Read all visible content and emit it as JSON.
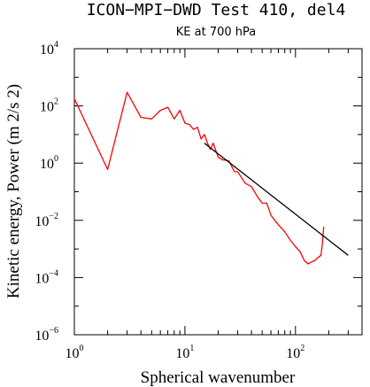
{
  "chart_data": {
    "type": "line",
    "title": "ICON−MPI−DWD Test 410, del4",
    "subtitle": "KE at 700 hPa",
    "xlabel": "Spherical wavenumber",
    "ylabel": "Kinetic energy, Power (m 2/s 2)",
    "x_scale": "log",
    "y_scale": "log",
    "xlim": [
      1,
      400
    ],
    "ylim": [
      1e-06,
      10000.0
    ],
    "x_ticks": [
      {
        "base": "10",
        "exp": "0",
        "value": 1
      },
      {
        "base": "10",
        "exp": "1",
        "value": 10
      },
      {
        "base": "10",
        "exp": "2",
        "value": 100
      }
    ],
    "y_ticks": [
      {
        "base": "10",
        "exp": "4",
        "value": 10000
      },
      {
        "base": "10",
        "exp": "2",
        "value": 100
      },
      {
        "base": "10",
        "exp": "0",
        "value": 1
      },
      {
        "base": "10",
        "exp": "−2",
        "value": 0.01
      },
      {
        "base": "10",
        "exp": "−4",
        "value": 0.0001
      },
      {
        "base": "10",
        "exp": "−6",
        "value": 1e-06
      }
    ],
    "grid": false,
    "legend": "none",
    "series": [
      {
        "color": "#ff0000",
        "x": [
          1,
          2,
          3,
          4,
          5,
          6,
          7,
          8,
          9,
          10,
          11,
          12,
          13,
          14,
          15,
          16,
          17,
          18,
          20,
          22,
          25,
          28,
          30,
          35,
          40,
          45,
          50,
          55,
          60,
          70,
          80,
          90,
          100,
          110,
          120,
          130,
          140,
          150,
          160,
          170,
          175,
          180
        ],
        "y": [
          180,
          0.6,
          300,
          40,
          35,
          70,
          90,
          35,
          70,
          25,
          22,
          15,
          18,
          7,
          10,
          5,
          3,
          5,
          1.6,
          1.3,
          1.2,
          0.5,
          0.5,
          0.2,
          0.15,
          0.07,
          0.04,
          0.04,
          0.015,
          0.007,
          0.004,
          0.002,
          0.0012,
          0.0008,
          0.0004,
          0.0003,
          0.00035,
          0.0004,
          0.0005,
          0.0006,
          0.0015,
          0.006
        ]
      },
      {
        "color": "#000000",
        "x": [
          15,
          300
        ],
        "y": [
          5,
          0.0006
        ]
      }
    ]
  }
}
